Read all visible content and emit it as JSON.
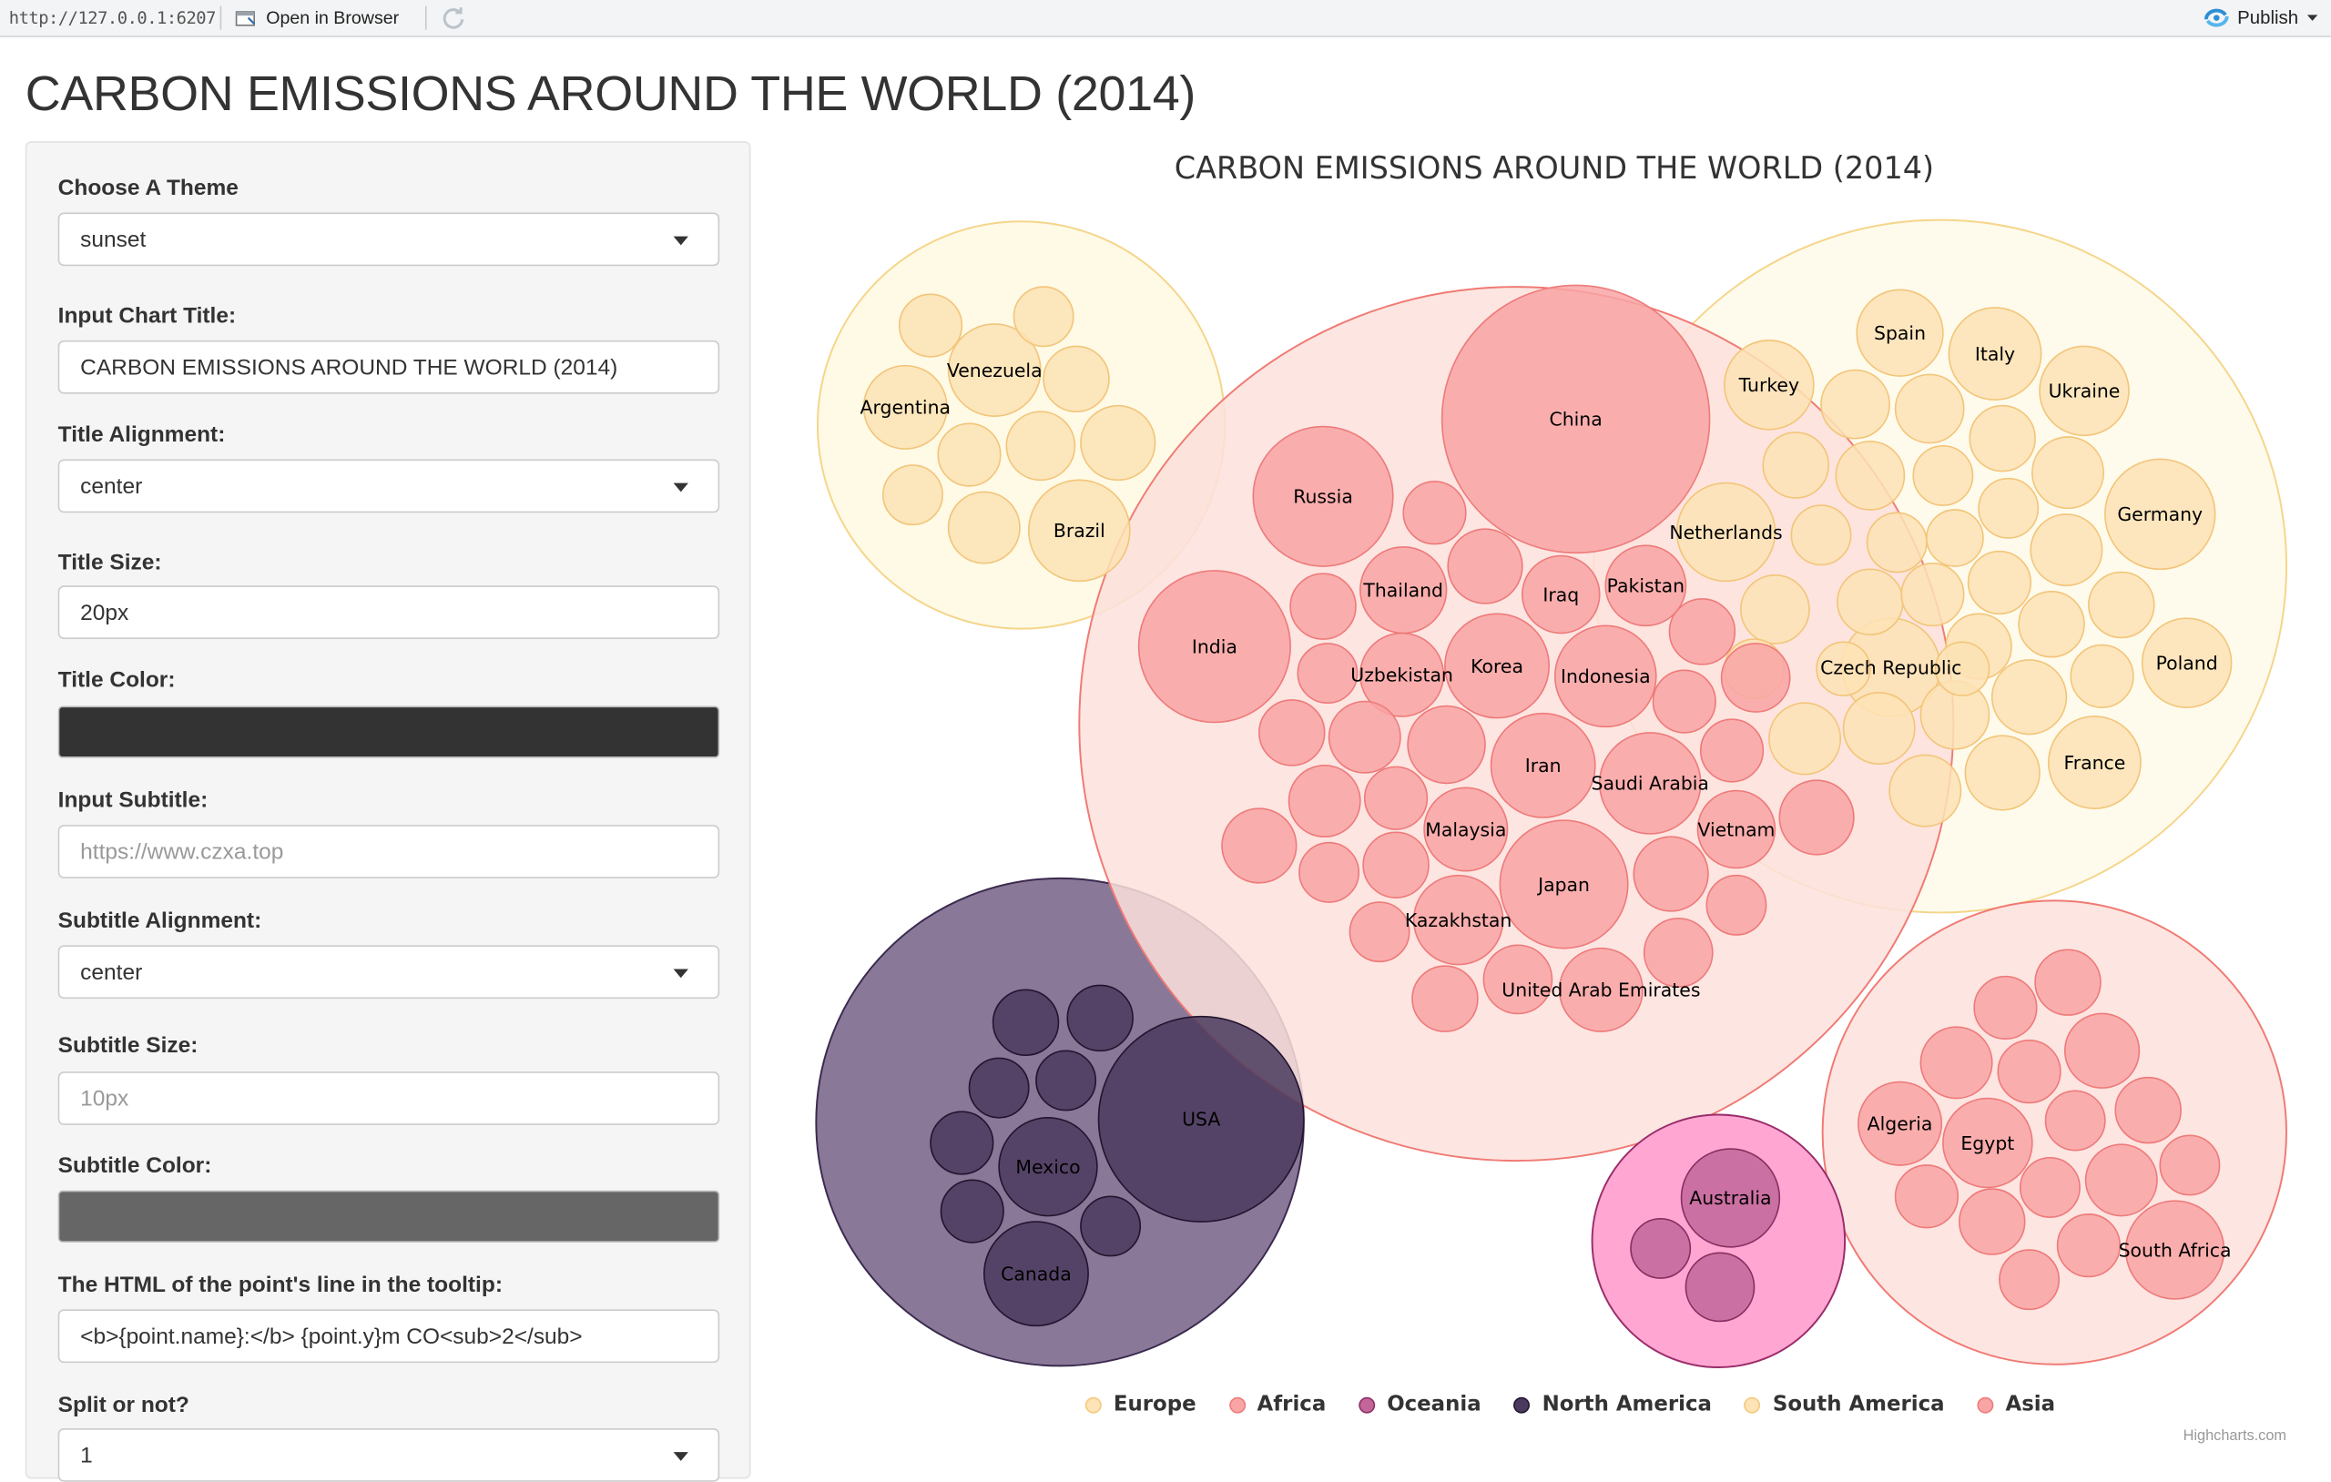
{
  "toolbar": {
    "url": "http://127.0.0.1:6207",
    "open_in_browser": "Open in Browser",
    "publish": "Publish"
  },
  "page_title": "CARBON EMISSIONS AROUND THE WORLD (2014)",
  "sidebar": {
    "theme_label": "Choose A Theme",
    "theme_value": "sunset",
    "chart_title_label": "Input Chart Title:",
    "chart_title_value": "CARBON EMISSIONS AROUND THE WORLD (2014)",
    "title_align_label": "Title Alignment:",
    "title_align_value": "center",
    "title_size_label": "Title Size:",
    "title_size_value": "20px",
    "title_color_label": "Title Color:",
    "title_color_value": "#333333",
    "subtitle_label": "Input Subtitle:",
    "subtitle_placeholder": "https://www.czxa.top",
    "subtitle_align_label": "Subtitle Alignment:",
    "subtitle_align_value": "center",
    "subtitle_size_label": "Subtitle Size:",
    "subtitle_size_placeholder": "10px",
    "subtitle_color_label": "Subtitle Color:",
    "subtitle_color_value": "#666666",
    "tooltip_label": "The HTML of the point's line in the tooltip:",
    "tooltip_value": "<b>{point.name}:</b> {point.y}m CO<sub>2</sub>",
    "split_label": "Split or not?",
    "split_value": "1"
  },
  "chart": {
    "title": "CARBON EMISSIONS AROUND THE WORLD (2014)",
    "credits": "Highcharts.com"
  },
  "chart_data": {
    "type": "packedbubble",
    "title": "CARBON EMISSIONS AROUND THE WORLD (2014)",
    "legend_position": "bottom-center",
    "series": [
      {
        "name": "Europe",
        "color": "#fde3b5",
        "labeled_points": [
          "Spain",
          "Italy",
          "Turkey",
          "Ukraine",
          "Germany",
          "Netherlands",
          "Czech Republic",
          "Poland",
          "France"
        ],
        "unlabeled_point_count": 38
      },
      {
        "name": "Africa",
        "color": "#f9a5a5",
        "labeled_points": [
          "Algeria",
          "Egypt",
          "South Africa"
        ],
        "unlabeled_point_count": 17
      },
      {
        "name": "Oceania",
        "color": "#c2669a",
        "labeled_points": [
          "Australia"
        ],
        "unlabeled_point_count": 2
      },
      {
        "name": "North America",
        "color": "#4a3a5e",
        "labeled_points": [
          "USA",
          "Mexico",
          "Canada"
        ],
        "unlabeled_point_count": 8
      },
      {
        "name": "South America",
        "color": "#fde3b5",
        "labeled_points": [
          "Argentina",
          "Venezuela",
          "Brazil"
        ],
        "unlabeled_point_count": 9
      },
      {
        "name": "Asia",
        "color": "#f9a5a5",
        "labeled_points": [
          "China",
          "Russia",
          "India",
          "Thailand",
          "Iraq",
          "Pakistan",
          "Uzbekistan",
          "Korea",
          "Indonesia",
          "Iran",
          "Saudi Arabia",
          "Malaysia",
          "Vietnam",
          "Japan",
          "Kazakhstan",
          "United Arab Emirates"
        ],
        "unlabeled_point_count": 32
      }
    ]
  },
  "colors": {
    "europe_fill": "#fde3b5",
    "asia_fill": "#f9a5a5",
    "north_america_fill": "#4a3a5e",
    "oceania_fill": "#c2669a",
    "publish_icon": "#2c8fd6"
  },
  "icons": {
    "open": "browser-window-icon",
    "refresh": "refresh-icon",
    "publish": "publish-icon"
  }
}
